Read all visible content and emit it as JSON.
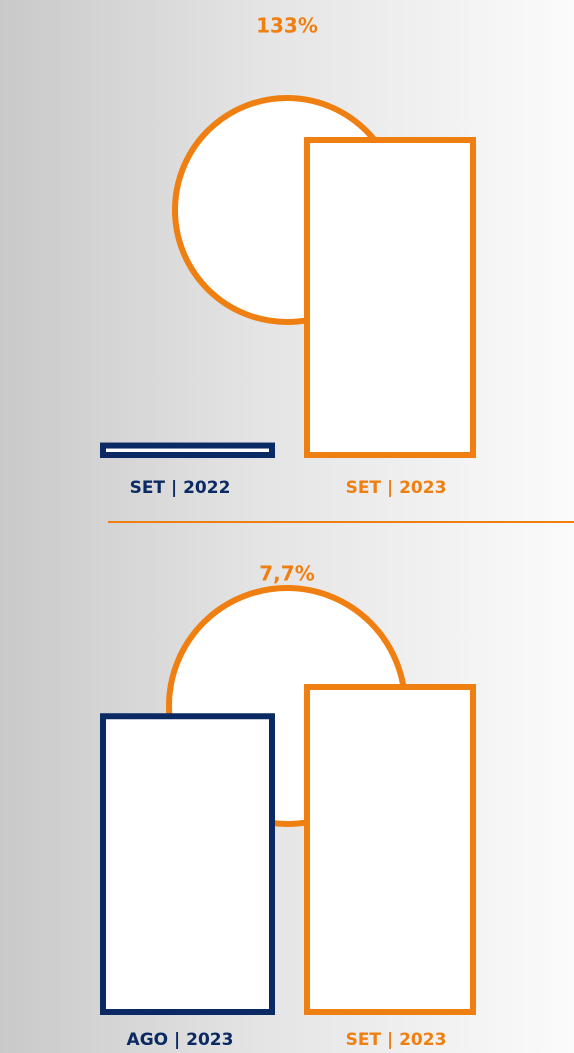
{
  "chart_data": [
    {
      "type": "bar",
      "annotation": "133%",
      "categories": [
        "SET | 2022",
        "SET | 2023"
      ],
      "values": [
        3,
        100
      ],
      "colors": [
        "#0b2a63",
        "#f07f12"
      ],
      "ylim": [
        0,
        100
      ]
    },
    {
      "type": "bar",
      "annotation": "7,7%",
      "categories": [
        "AGO | 2023",
        "SET | 2023"
      ],
      "values": [
        91,
        100
      ],
      "colors": [
        "#0b2a63",
        "#f07f12"
      ],
      "ylim": [
        0,
        100
      ]
    }
  ]
}
